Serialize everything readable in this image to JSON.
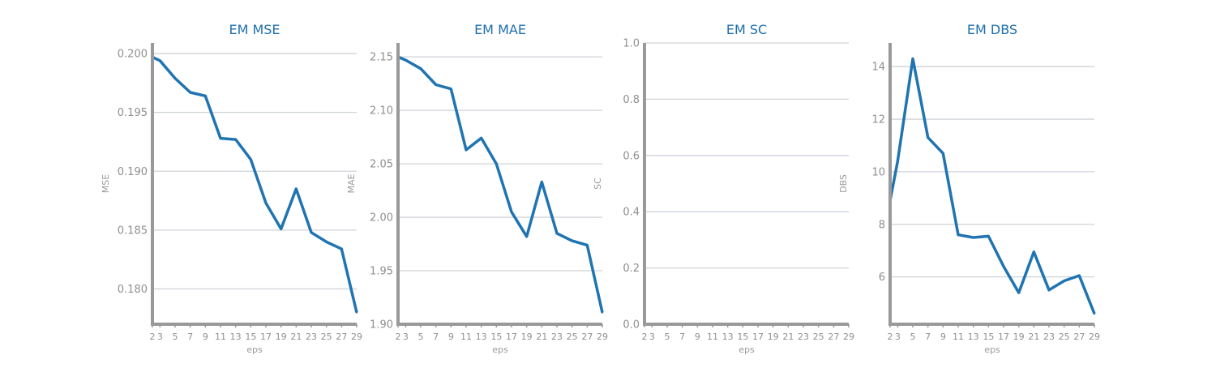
{
  "chart_data": [
    {
      "type": "line",
      "title": "EM MSE",
      "xlabel": "eps",
      "ylabel": "MSE",
      "x": [
        2,
        3,
        5,
        7,
        9,
        11,
        13,
        15,
        17,
        19,
        21,
        23,
        25,
        27,
        29
      ],
      "x_ticks": [
        "2",
        "3",
        "5",
        "7",
        "9",
        "11",
        "13",
        "15",
        "17",
        "19",
        "21",
        "23",
        "25",
        "27",
        "29"
      ],
      "xlim": [
        2,
        29
      ],
      "ylim": [
        0.177,
        0.2009
      ],
      "y_ticks": [
        "0.180",
        "0.185",
        "0.190",
        "0.195",
        "0.200"
      ],
      "y_tick_values": [
        0.18,
        0.185,
        0.19,
        0.195,
        0.2
      ],
      "grid": true,
      "series": [
        {
          "values": [
            0.1997,
            0.1994,
            0.1979,
            0.1967,
            0.1964,
            0.1928,
            0.1927,
            0.191,
            0.1873,
            0.1851,
            0.1885,
            0.1848,
            0.184,
            0.1834,
            0.178
          ]
        }
      ]
    },
    {
      "type": "line",
      "title": "EM MAE",
      "xlabel": "eps",
      "ylabel": "MAE",
      "x": [
        2,
        3,
        5,
        7,
        9,
        11,
        13,
        15,
        17,
        19,
        21,
        23,
        25,
        27,
        29
      ],
      "x_ticks": [
        "2",
        "3",
        "5",
        "7",
        "9",
        "11",
        "13",
        "15",
        "17",
        "19",
        "21",
        "23",
        "25",
        "27",
        "29"
      ],
      "xlim": [
        2,
        29
      ],
      "ylim": [
        1.9,
        2.163
      ],
      "y_ticks": [
        "1.90",
        "1.95",
        "2.00",
        "2.05",
        "2.10",
        "2.15"
      ],
      "y_tick_values": [
        1.9,
        1.95,
        2.0,
        2.05,
        2.1,
        2.15
      ],
      "grid": true,
      "series": [
        {
          "values": [
            2.15,
            2.147,
            2.139,
            2.124,
            2.12,
            2.063,
            2.074,
            2.05,
            2.005,
            1.982,
            2.033,
            1.985,
            1.978,
            1.974,
            1.911
          ]
        }
      ]
    },
    {
      "type": "line",
      "title": "EM SC",
      "xlabel": "eps",
      "ylabel": "SC",
      "x": [
        2,
        3,
        5,
        7,
        9,
        11,
        13,
        15,
        17,
        19,
        21,
        23,
        25,
        27,
        29
      ],
      "x_ticks": [
        "2",
        "3",
        "5",
        "7",
        "9",
        "11",
        "13",
        "15",
        "17",
        "19",
        "21",
        "23",
        "25",
        "27",
        "29"
      ],
      "xlim": [
        2,
        29
      ],
      "ylim": [
        0,
        1.0
      ],
      "y_ticks": [
        "0.0",
        "0.2",
        "0.4",
        "0.6",
        "0.8",
        "1.0"
      ],
      "y_tick_values": [
        0,
        0.2,
        0.4,
        0.6,
        0.8,
        1.0
      ],
      "grid": true,
      "series": []
    },
    {
      "type": "line",
      "title": "EM DBS",
      "xlabel": "eps",
      "ylabel": "DBS",
      "x": [
        2,
        3,
        5,
        7,
        9,
        11,
        13,
        15,
        17,
        19,
        21,
        23,
        25,
        27,
        29
      ],
      "x_ticks": [
        "2",
        "3",
        "5",
        "7",
        "9",
        "11",
        "13",
        "15",
        "17",
        "19",
        "21",
        "23",
        "25",
        "27",
        "29"
      ],
      "xlim": [
        2,
        29
      ],
      "ylim": [
        4.2,
        14.9
      ],
      "y_ticks": [
        "6",
        "8",
        "10",
        "12",
        "14"
      ],
      "y_tick_values": [
        6,
        8,
        10,
        12,
        14
      ],
      "grid": true,
      "series": [
        {
          "values": [
            8.9,
            10.4,
            14.3,
            11.3,
            10.7,
            7.6,
            7.5,
            7.55,
            6.4,
            5.4,
            6.95,
            5.5,
            5.85,
            6.05,
            4.6
          ]
        }
      ]
    }
  ]
}
